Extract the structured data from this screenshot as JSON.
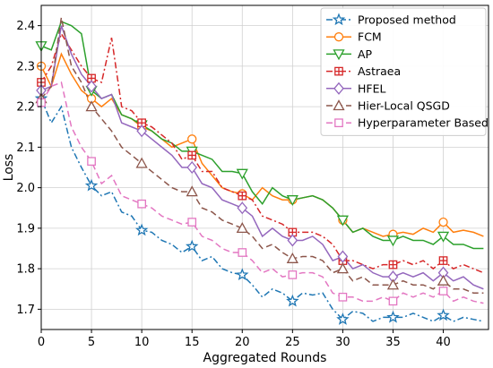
{
  "chart_data": {
    "type": "line",
    "xlabel": "Aggregated Rounds",
    "ylabel": "Loss",
    "xlim": [
      0,
      44.5
    ],
    "ylim": [
      1.65,
      2.45
    ],
    "xticks": [
      0,
      5,
      10,
      15,
      20,
      25,
      30,
      35,
      40
    ],
    "yticks": [
      1.7,
      1.8,
      1.9,
      2.0,
      2.1,
      2.2,
      2.3,
      2.4
    ],
    "grid": true,
    "legend": "top-right",
    "x": [
      0,
      1,
      2,
      3,
      4,
      5,
      6,
      7,
      8,
      9,
      10,
      11,
      12,
      13,
      14,
      15,
      16,
      17,
      18,
      19,
      20,
      21,
      22,
      23,
      24,
      25,
      26,
      27,
      28,
      29,
      30,
      31,
      32,
      33,
      34,
      35,
      36,
      37,
      38,
      39,
      40,
      41,
      42,
      43,
      44
    ],
    "marker_every": 5,
    "series": [
      {
        "name": "Proposed method",
        "color": "#1f77b4",
        "dash": "7,3,2,3",
        "marker": "star",
        "values": [
          2.22,
          2.16,
          2.2,
          2.1,
          2.05,
          2.005,
          1.98,
          1.99,
          1.94,
          1.93,
          1.895,
          1.89,
          1.87,
          1.86,
          1.84,
          1.855,
          1.82,
          1.83,
          1.8,
          1.79,
          1.785,
          1.76,
          1.73,
          1.75,
          1.74,
          1.72,
          1.74,
          1.735,
          1.74,
          1.7,
          1.675,
          1.695,
          1.69,
          1.67,
          1.68,
          1.68,
          1.68,
          1.69,
          1.68,
          1.67,
          1.685,
          1.67,
          1.68,
          1.675,
          1.67
        ]
      },
      {
        "name": "FCM",
        "color": "#ff7f0e",
        "dash": "",
        "marker": "circle",
        "values": [
          2.3,
          2.25,
          2.33,
          2.28,
          2.24,
          2.22,
          2.2,
          2.22,
          2.18,
          2.17,
          2.15,
          2.14,
          2.12,
          2.1,
          2.11,
          2.12,
          2.06,
          2.03,
          2.0,
          1.99,
          1.985,
          1.97,
          2.0,
          1.98,
          1.97,
          1.97,
          1.975,
          1.98,
          1.97,
          1.95,
          1.92,
          1.89,
          1.9,
          1.89,
          1.88,
          1.885,
          1.89,
          1.885,
          1.9,
          1.89,
          1.915,
          1.89,
          1.895,
          1.89,
          1.88
        ]
      },
      {
        "name": "AP",
        "color": "#2ca02c",
        "dash": "",
        "marker": "triangle-down",
        "values": [
          2.35,
          2.34,
          2.41,
          2.4,
          2.38,
          2.24,
          2.22,
          2.23,
          2.18,
          2.17,
          2.155,
          2.14,
          2.12,
          2.11,
          2.09,
          2.09,
          2.08,
          2.07,
          2.04,
          2.04,
          2.035,
          1.99,
          1.96,
          2.0,
          1.98,
          1.97,
          1.975,
          1.98,
          1.97,
          1.95,
          1.92,
          1.89,
          1.9,
          1.88,
          1.87,
          1.87,
          1.88,
          1.87,
          1.87,
          1.86,
          1.88,
          1.86,
          1.86,
          1.85,
          1.85
        ]
      },
      {
        "name": "Astraea",
        "color": "#d62728",
        "dash": "7,3,2,3",
        "marker": "square-plus",
        "values": [
          2.26,
          2.3,
          2.38,
          2.34,
          2.3,
          2.27,
          2.26,
          2.37,
          2.2,
          2.19,
          2.16,
          2.15,
          2.13,
          2.11,
          2.07,
          2.08,
          2.04,
          2.04,
          2.0,
          1.99,
          1.98,
          1.97,
          1.93,
          1.92,
          1.91,
          1.89,
          1.89,
          1.89,
          1.88,
          1.86,
          1.82,
          1.82,
          1.81,
          1.8,
          1.81,
          1.81,
          1.82,
          1.81,
          1.82,
          1.8,
          1.82,
          1.8,
          1.81,
          1.8,
          1.79
        ]
      },
      {
        "name": "HFEL",
        "color": "#9467bd",
        "dash": "",
        "marker": "diamond",
        "values": [
          2.24,
          2.25,
          2.4,
          2.33,
          2.28,
          2.25,
          2.22,
          2.23,
          2.16,
          2.15,
          2.14,
          2.12,
          2.1,
          2.08,
          2.05,
          2.05,
          2.01,
          2.0,
          1.97,
          1.96,
          1.95,
          1.93,
          1.88,
          1.9,
          1.88,
          1.87,
          1.87,
          1.88,
          1.86,
          1.82,
          1.83,
          1.8,
          1.81,
          1.79,
          1.78,
          1.78,
          1.79,
          1.78,
          1.79,
          1.77,
          1.79,
          1.77,
          1.78,
          1.76,
          1.75
        ]
      },
      {
        "name": "Hier-Local QSGD",
        "color": "#8c564b",
        "dash": "7,4",
        "marker": "triangle-up",
        "values": [
          2.22,
          2.25,
          2.42,
          2.3,
          2.26,
          2.2,
          2.17,
          2.14,
          2.1,
          2.08,
          2.06,
          2.04,
          2.02,
          2.0,
          1.99,
          1.99,
          1.95,
          1.94,
          1.92,
          1.91,
          1.9,
          1.88,
          1.85,
          1.86,
          1.84,
          1.825,
          1.83,
          1.83,
          1.82,
          1.79,
          1.8,
          1.77,
          1.78,
          1.76,
          1.76,
          1.76,
          1.77,
          1.76,
          1.76,
          1.75,
          1.77,
          1.75,
          1.75,
          1.74,
          1.74
        ]
      },
      {
        "name": "Hyperparameter Based",
        "color": "#e377c2",
        "dash": "7,4",
        "marker": "square",
        "values": [
          2.21,
          2.25,
          2.26,
          2.15,
          2.1,
          2.065,
          2.01,
          2.03,
          1.98,
          1.97,
          1.96,
          1.95,
          1.93,
          1.92,
          1.91,
          1.915,
          1.88,
          1.87,
          1.85,
          1.84,
          1.84,
          1.82,
          1.79,
          1.8,
          1.78,
          1.785,
          1.79,
          1.79,
          1.78,
          1.74,
          1.73,
          1.73,
          1.72,
          1.72,
          1.73,
          1.72,
          1.74,
          1.73,
          1.74,
          1.73,
          1.745,
          1.72,
          1.73,
          1.72,
          1.715
        ]
      }
    ]
  }
}
